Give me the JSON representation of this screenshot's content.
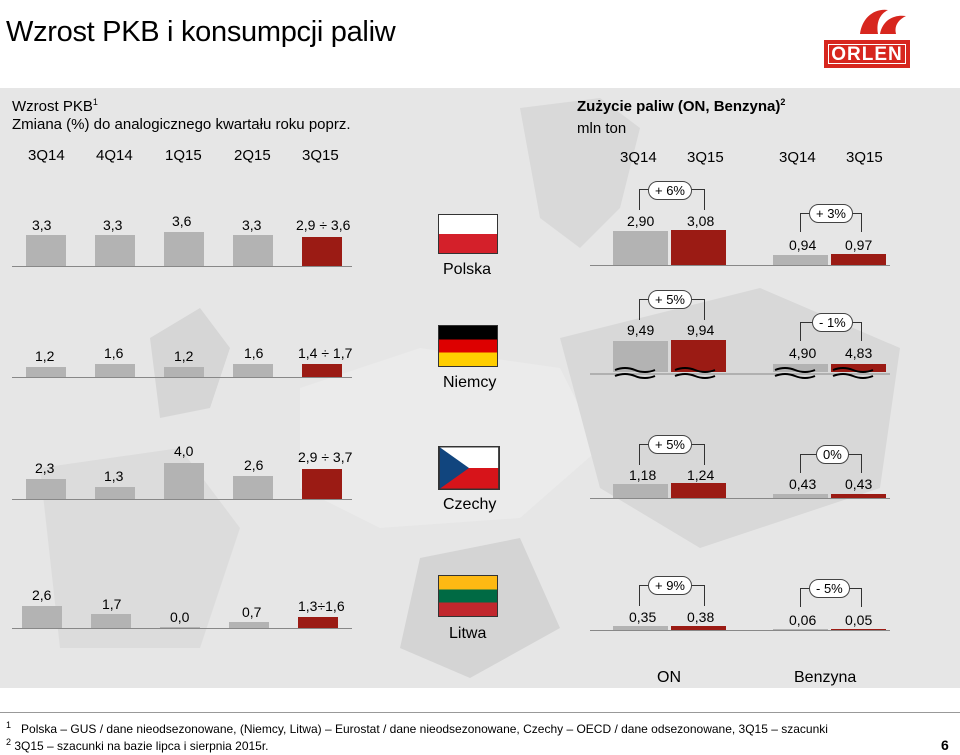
{
  "page": {
    "title": "Wzrost PKB i konsumpcji paliw",
    "page_number": "6"
  },
  "logo": {
    "text": "ORLEN"
  },
  "left_panel": {
    "title": "Wzrost PKB",
    "title_sup": "1",
    "subtitle": "Zmiana (%) do analogicznego kwartału roku poprz.",
    "quarters": [
      "3Q14",
      "4Q14",
      "1Q15",
      "2Q15",
      "3Q15"
    ]
  },
  "right_panel": {
    "title": "Zużycie paliw (ON, Benzyna)",
    "title_sup": "2",
    "unit": "mln ton",
    "quarters": [
      "3Q14",
      "3Q15",
      "3Q14",
      "3Q15"
    ],
    "on_label": "ON",
    "benzyna_label": "Benzyna"
  },
  "countries": [
    {
      "name": "Polska",
      "gdp": [
        "3,3",
        "3,3",
        "3,6",
        "3,3",
        "2,9 ÷ 3,6"
      ],
      "on": [
        "2,90",
        "3,08"
      ],
      "on_change": "+ 6%",
      "benzyna": [
        "0,94",
        "0,97"
      ],
      "benzyna_change": "+ 3%"
    },
    {
      "name": "Niemcy",
      "gdp": [
        "1,2",
        "1,6",
        "1,2",
        "1,6",
        "1,4 ÷ 1,7"
      ],
      "on": [
        "9,49",
        "9,94"
      ],
      "on_change": "+ 5%",
      "benzyna": [
        "4,90",
        "4,83"
      ],
      "benzyna_change": "- 1%"
    },
    {
      "name": "Czechy",
      "gdp": [
        "2,3",
        "1,3",
        "4,0",
        "2,6",
        "2,9 ÷ 3,7"
      ],
      "on": [
        "1,18",
        "1,24"
      ],
      "on_change": "+ 5%",
      "benzyna": [
        "0,43",
        "0,43"
      ],
      "benzyna_change": "0%"
    },
    {
      "name": "Litwa",
      "gdp": [
        "2,6",
        "1,7",
        "0,0",
        "0,7",
        "1,3÷1,6"
      ],
      "on": [
        "0,35",
        "0,38"
      ],
      "on_change": "+ 9%",
      "benzyna": [
        "0,06",
        "0,05"
      ],
      "benzyna_change": "- 5%"
    }
  ],
  "footnotes": {
    "note1_mark": "1",
    "note1": "Polska – GUS / dane nieodsezonowane, (Niemcy, Litwa) – Eurostat /  dane nieodsezonowane, Czechy – OECD / dane odsezonowane, 3Q15 – szacunki",
    "note2_mark": "2",
    "note2": "3Q15 – szacunki na bazie lipca i sierpnia 2015r."
  },
  "colors": {
    "grey_bar": "#b3b3b3",
    "red_bar": "#9b1b14",
    "orlen_red": "#d7261e",
    "map_bg": "#e6e6e6"
  }
}
